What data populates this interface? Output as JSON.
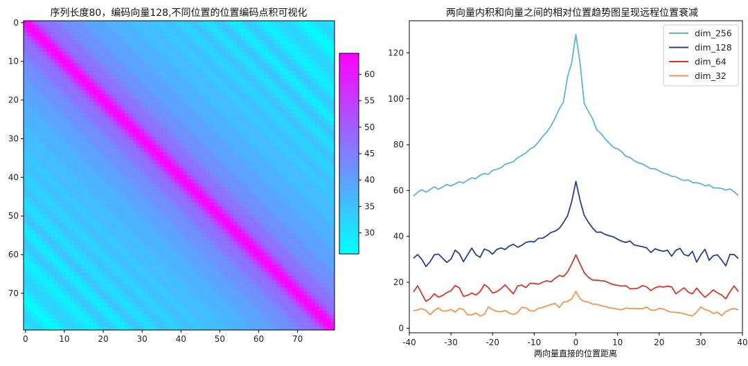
{
  "chart_data": [
    {
      "type": "heatmap",
      "title": "序列长度80，编码向量128,不同位置的位置编码点积可视化",
      "size": 80,
      "dim": 128,
      "xticks": [
        0,
        10,
        20,
        30,
        40,
        50,
        60,
        70
      ],
      "yticks": [
        0,
        10,
        20,
        30,
        40,
        50,
        60,
        70
      ],
      "colormap": "cool",
      "colorbar": {
        "min": 26,
        "max": 64,
        "ticks": [
          30,
          35,
          40,
          45,
          50,
          55,
          60
        ]
      }
    },
    {
      "type": "line",
      "title": "两向量内积和向量之间的相对位置趋势图呈现远程位置衰减",
      "xlabel": "两向量直接的位置距离",
      "ylabel": "",
      "xlim": [
        -40,
        40
      ],
      "ylim": [
        -2,
        134
      ],
      "xticks": [
        -40,
        -30,
        -20,
        -10,
        0,
        10,
        20,
        30,
        40
      ],
      "yticks": [
        0,
        20,
        40,
        60,
        80,
        100,
        120
      ],
      "x": [
        -39,
        -38,
        -37,
        -36,
        -35,
        -34,
        -33,
        -32,
        -31,
        -30,
        -29,
        -28,
        -27,
        -26,
        -25,
        -24,
        -23,
        -22,
        -21,
        -20,
        -19,
        -18,
        -17,
        -16,
        -15,
        -14,
        -13,
        -12,
        -11,
        -10,
        -9,
        -8,
        -7,
        -6,
        -5,
        -4,
        -3,
        -2,
        -1,
        0,
        1,
        2,
        3,
        4,
        5,
        6,
        7,
        8,
        9,
        10,
        11,
        12,
        13,
        14,
        15,
        16,
        17,
        18,
        19,
        20,
        21,
        22,
        23,
        24,
        25,
        26,
        27,
        28,
        29,
        30,
        31,
        32,
        33,
        34,
        35,
        36,
        37,
        38,
        39
      ],
      "legend": "upper right",
      "series": [
        {
          "name": "dim_256",
          "color": "#5ab4dc",
          "values": [
            57.6,
            59.2,
            60.4,
            59.3,
            60.5,
            61.6,
            60.6,
            61.5,
            62.6,
            62.0,
            62.9,
            63.8,
            63.3,
            64.5,
            65.5,
            65.2,
            66.7,
            67.4,
            67.1,
            68.8,
            69.3,
            69.9,
            71.4,
            72.0,
            72.6,
            74.3,
            75.3,
            76.4,
            78.1,
            79.1,
            81.1,
            83.5,
            85.4,
            88.1,
            91.5,
            95.5,
            98.5,
            109.6,
            115.7,
            128.0,
            115.7,
            98.0,
            94.5,
            91.3,
            86.5,
            84.9,
            82.6,
            80.7,
            78.8,
            78.2,
            76.9,
            74.9,
            74.4,
            73.0,
            72.1,
            71.6,
            70.5,
            69.5,
            69.5,
            68.6,
            67.6,
            67.1,
            66.2,
            66.0,
            65.0,
            64.4,
            64.6,
            63.5,
            63.4,
            63.0,
            62.0,
            62.5,
            61.2,
            61.1,
            60.9,
            60.2,
            60.7,
            59.5,
            57.8
          ]
        },
        {
          "name": "dim_128",
          "color": "#253f8e",
          "values": [
            30.5,
            32.1,
            30.0,
            26.9,
            29.0,
            32.0,
            32.3,
            30.5,
            28.7,
            30.1,
            34.0,
            32.5,
            29.0,
            32.0,
            34.9,
            32.0,
            30.9,
            34.5,
            33.8,
            32.3,
            34.3,
            35.0,
            34.3,
            35.8,
            36.6,
            35.3,
            36.1,
            37.4,
            37.8,
            37.6,
            39.2,
            39.2,
            40.3,
            41.7,
            42.3,
            43.5,
            46.0,
            49.0,
            55.2,
            64.0,
            55.8,
            49.2,
            46.2,
            43.7,
            41.8,
            41.9,
            40.9,
            40.3,
            39.8,
            38.8,
            37.9,
            37.4,
            38.0,
            36.3,
            35.9,
            35.5,
            35.0,
            33.0,
            34.6,
            34.0,
            33.5,
            34.0,
            31.4,
            33.9,
            34.8,
            32.1,
            31.5,
            33.5,
            28.8,
            32.0,
            34.4,
            29.6,
            31.6,
            32.0,
            29.7,
            27.2,
            32.2,
            32.1,
            30.4
          ]
        },
        {
          "name": "dim_64",
          "color": "#d9352b",
          "values": [
            15.8,
            18.5,
            15.0,
            11.7,
            12.9,
            15.0,
            13.5,
            14.3,
            15.5,
            16.3,
            18.6,
            17.6,
            13.9,
            14.3,
            15.3,
            14.5,
            15.9,
            19.0,
            17.7,
            15.3,
            15.9,
            17.2,
            18.9,
            16.9,
            15.0,
            18.4,
            18.8,
            17.7,
            19.6,
            19.5,
            19.2,
            20.0,
            20.7,
            20.2,
            21.7,
            23.0,
            22.5,
            24.5,
            28.0,
            32.0,
            28.0,
            24.2,
            22.2,
            21.0,
            20.9,
            20.7,
            20.5,
            19.7,
            19.0,
            18.7,
            18.4,
            18.5,
            17.2,
            17.2,
            17.5,
            18.6,
            18.0,
            16.4,
            17.6,
            18.2,
            17.9,
            18.3,
            18.0,
            15.0,
            16.3,
            17.6,
            15.7,
            15.0,
            17.5,
            15.3,
            13.5,
            15.0,
            16.7,
            15.4,
            14.5,
            12.8,
            15.9,
            18.4,
            16.0
          ]
        },
        {
          "name": "dim_32",
          "color": "#f0954a",
          "values": [
            7.6,
            8.0,
            8.5,
            7.7,
            5.9,
            7.7,
            8.8,
            7.5,
            7.5,
            8.2,
            7.0,
            8.6,
            8.2,
            5.8,
            5.8,
            6.6,
            5.3,
            6.0,
            9.3,
            8.1,
            7.3,
            7.2,
            7.7,
            6.6,
            6.0,
            6.8,
            9.1,
            8.9,
            7.6,
            7.5,
            8.7,
            9.0,
            9.7,
            10.3,
            10.8,
            9.0,
            11.4,
            11.6,
            12.8,
            16.0,
            12.8,
            11.6,
            11.4,
            10.5,
            10.5,
            9.8,
            9.5,
            8.9,
            8.7,
            8.3,
            8.0,
            8.8,
            8.6,
            8.6,
            8.5,
            8.5,
            9.2,
            7.9,
            7.8,
            8.6,
            8.4,
            7.5,
            7.0,
            6.9,
            6.7,
            6.3,
            5.7,
            5.4,
            7.0,
            9.3,
            8.1,
            7.6,
            6.4,
            7.0,
            5.5,
            7.2,
            8.1,
            8.6,
            8.0
          ]
        }
      ]
    }
  ]
}
